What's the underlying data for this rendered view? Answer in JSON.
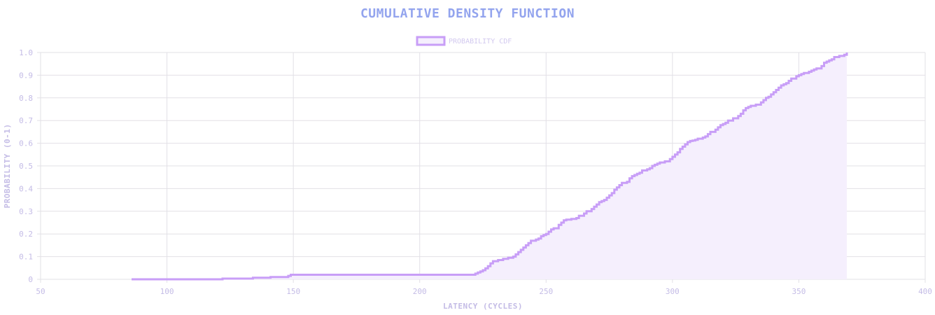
{
  "colors": {
    "title": "#93a4ee",
    "series_line": "#c89ef7",
    "series_fill": "#f5effd",
    "grid": "#e2e0e6",
    "text": "#c4bce6"
  },
  "chart_data": {
    "type": "line",
    "title": "CUMULATIVE DENSITY FUNCTION",
    "xlabel": "LATENCY (CYCLES)",
    "ylabel": "PROBABILITY (0-1)",
    "xlim": [
      50,
      400
    ],
    "ylim": [
      0,
      1
    ],
    "x_ticks": [
      "50",
      "100",
      "150",
      "200",
      "250",
      "300",
      "350",
      "400"
    ],
    "y_ticks": [
      "0",
      "0.1",
      "0.2",
      "0.3",
      "0.4",
      "0.5",
      "0.6",
      "0.7",
      "0.8",
      "0.9",
      "1.0"
    ],
    "grid": true,
    "legend": "top-center",
    "step": true,
    "filled": true,
    "series": [
      {
        "name": "PROBABILITY CDF",
        "x": [
          86,
          122,
          134,
          141,
          148,
          149,
          220,
          222,
          223,
          224,
          225,
          226,
          227,
          228,
          229,
          231,
          233,
          235,
          237,
          238,
          239,
          240,
          241,
          242,
          243,
          244,
          246,
          247,
          248,
          249,
          250,
          251,
          252,
          253,
          255,
          256,
          257,
          258,
          260,
          262,
          263,
          265,
          266,
          268,
          269,
          270,
          271,
          272,
          273,
          274,
          275,
          276,
          277,
          278,
          279,
          280,
          282,
          283,
          284,
          285,
          286,
          287,
          288,
          290,
          291,
          292,
          293,
          294,
          295,
          297,
          299,
          300,
          301,
          302,
          303,
          304,
          305,
          306,
          307,
          308,
          309,
          310,
          312,
          313,
          314,
          315,
          317,
          318,
          319,
          320,
          321,
          322,
          324,
          326,
          327,
          328,
          329,
          330,
          331,
          333,
          335,
          336,
          337,
          338,
          339,
          340,
          341,
          342,
          343,
          344,
          345,
          346,
          347,
          349,
          350,
          351,
          352,
          354,
          355,
          356,
          357,
          359,
          360,
          361,
          362,
          363,
          364,
          366,
          368,
          369
        ],
        "values": [
          0,
          0.003,
          0.007,
          0.01,
          0.015,
          0.02,
          0.02,
          0.025,
          0.03,
          0.035,
          0.04,
          0.048,
          0.058,
          0.07,
          0.08,
          0.085,
          0.09,
          0.095,
          0.1,
          0.11,
          0.12,
          0.13,
          0.14,
          0.15,
          0.16,
          0.17,
          0.175,
          0.18,
          0.19,
          0.195,
          0.2,
          0.21,
          0.22,
          0.225,
          0.24,
          0.25,
          0.26,
          0.263,
          0.266,
          0.27,
          0.28,
          0.29,
          0.3,
          0.31,
          0.32,
          0.33,
          0.34,
          0.345,
          0.35,
          0.36,
          0.37,
          0.38,
          0.395,
          0.405,
          0.415,
          0.425,
          0.43,
          0.445,
          0.455,
          0.46,
          0.465,
          0.47,
          0.48,
          0.485,
          0.49,
          0.5,
          0.505,
          0.51,
          0.515,
          0.52,
          0.53,
          0.54,
          0.55,
          0.56,
          0.575,
          0.585,
          0.595,
          0.605,
          0.61,
          0.612,
          0.615,
          0.62,
          0.625,
          0.63,
          0.64,
          0.65,
          0.66,
          0.67,
          0.68,
          0.685,
          0.69,
          0.7,
          0.71,
          0.72,
          0.73,
          0.745,
          0.755,
          0.76,
          0.765,
          0.77,
          0.78,
          0.79,
          0.8,
          0.805,
          0.815,
          0.825,
          0.835,
          0.845,
          0.855,
          0.86,
          0.865,
          0.875,
          0.885,
          0.895,
          0.9,
          0.905,
          0.91,
          0.915,
          0.92,
          0.925,
          0.93,
          0.94,
          0.955,
          0.96,
          0.965,
          0.97,
          0.98,
          0.985,
          0.99,
          1.0
        ]
      }
    ]
  }
}
